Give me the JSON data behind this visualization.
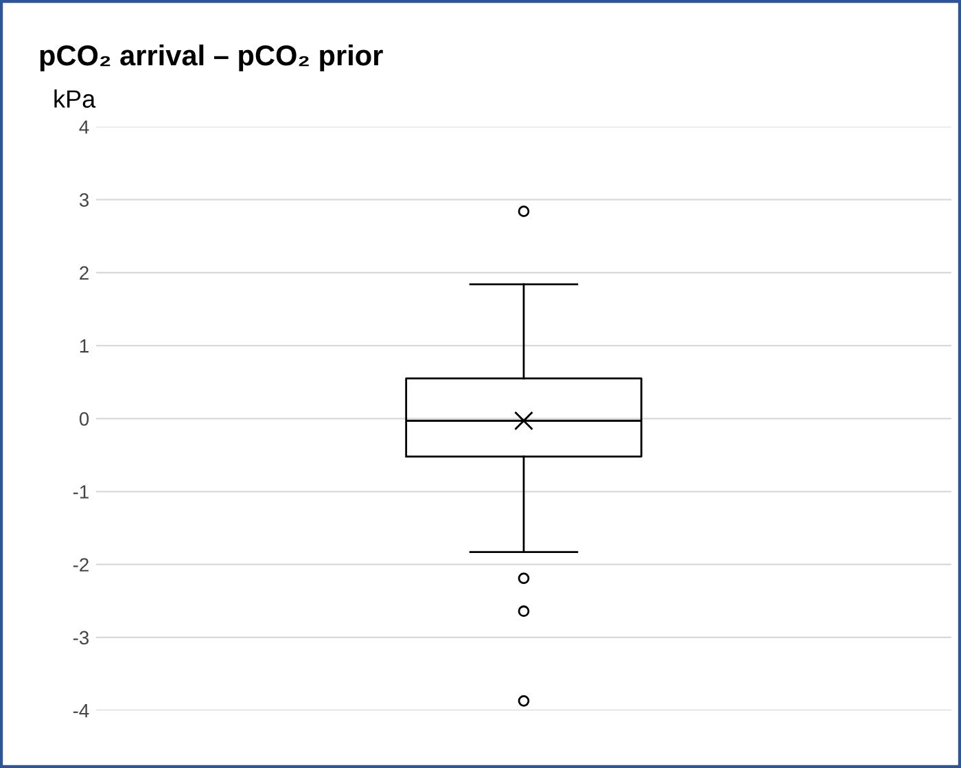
{
  "chart_data": {
    "type": "box",
    "title": "pCO₂ arrival – pCO₂ prior",
    "ylabel": "kPa",
    "categories": [
      null
    ],
    "boxes": [
      {
        "low": -1.83,
        "q1": -0.52,
        "median": -0.03,
        "q3": 0.55,
        "high": 1.84,
        "mean": -0.03,
        "outliers": [
          2.84,
          -2.19,
          -2.64,
          -3.87
        ]
      }
    ],
    "ylim": [
      -4,
      4
    ],
    "yticks": [
      -4,
      -3,
      -2,
      -1,
      0,
      1,
      2,
      3,
      4
    ],
    "grid": "y",
    "color": "#000000"
  }
}
